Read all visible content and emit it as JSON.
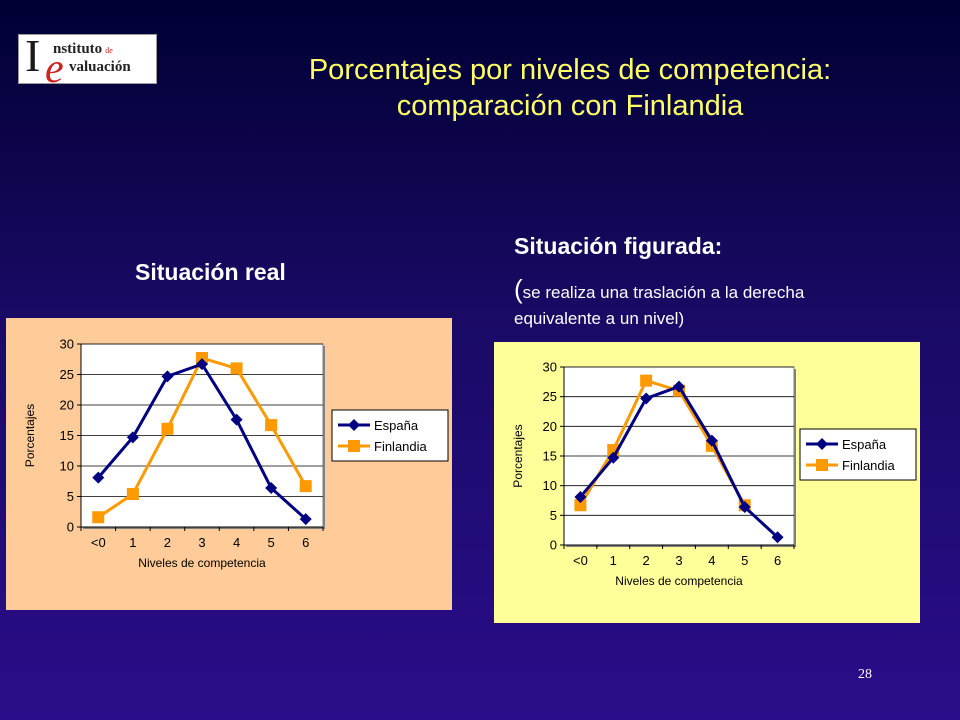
{
  "logo": {
    "line1": "nstituto",
    "line1_small": "de",
    "line2": "valuación",
    "initial_i": "I",
    "initial_e": "e"
  },
  "title_line1": "Porcentajes por niveles de competencia:",
  "title_line2": "comparación con Finlandia",
  "left_heading": "Situación real",
  "right_heading": "Situación figurada:",
  "right_note": "se realiza una traslación a la derecha equivalente a un nivel)",
  "page_number": "28",
  "colors": {
    "title": "#ffff66",
    "espana": "#000080",
    "finlandia": "#ff9900",
    "left_bg": "#ffcc99",
    "right_bg": "#ffff99"
  },
  "chart_data": [
    {
      "type": "line",
      "categories": [
        "<0",
        "1",
        "2",
        "3",
        "4",
        "5",
        "6"
      ],
      "series": [
        {
          "name": "España",
          "values": [
            8.1,
            14.7,
            24.7,
            26.7,
            17.6,
            6.4,
            1.3
          ]
        },
        {
          "name": "Finlandia",
          "values": [
            1.6,
            5.4,
            16.1,
            27.7,
            26.0,
            16.7,
            6.7
          ]
        }
      ],
      "xlabel": "Niveles de competencia",
      "ylabel": "Porcentajes",
      "ylim": [
        0,
        30
      ],
      "yticks": [
        0,
        5,
        10,
        15,
        20,
        25,
        30
      ],
      "grid": true,
      "legend": "right",
      "background": "#ffcc99"
    },
    {
      "type": "line",
      "categories": [
        "<0",
        "1",
        "2",
        "3",
        "4",
        "5",
        "6"
      ],
      "series": [
        {
          "name": "España",
          "values": [
            8.1,
            14.7,
            24.7,
            26.7,
            17.6,
            6.4,
            1.3
          ]
        },
        {
          "name": "Finlandia",
          "values": [
            6.7,
            16.0,
            27.7,
            26.0,
            16.7,
            6.7,
            null
          ]
        }
      ],
      "xlabel": "Niveles de competencia",
      "ylabel": "Porcentajes",
      "ylim": [
        0,
        30
      ],
      "yticks": [
        0,
        5,
        10,
        15,
        20,
        25,
        30
      ],
      "grid": true,
      "legend": "right",
      "background": "#ffff99"
    }
  ]
}
